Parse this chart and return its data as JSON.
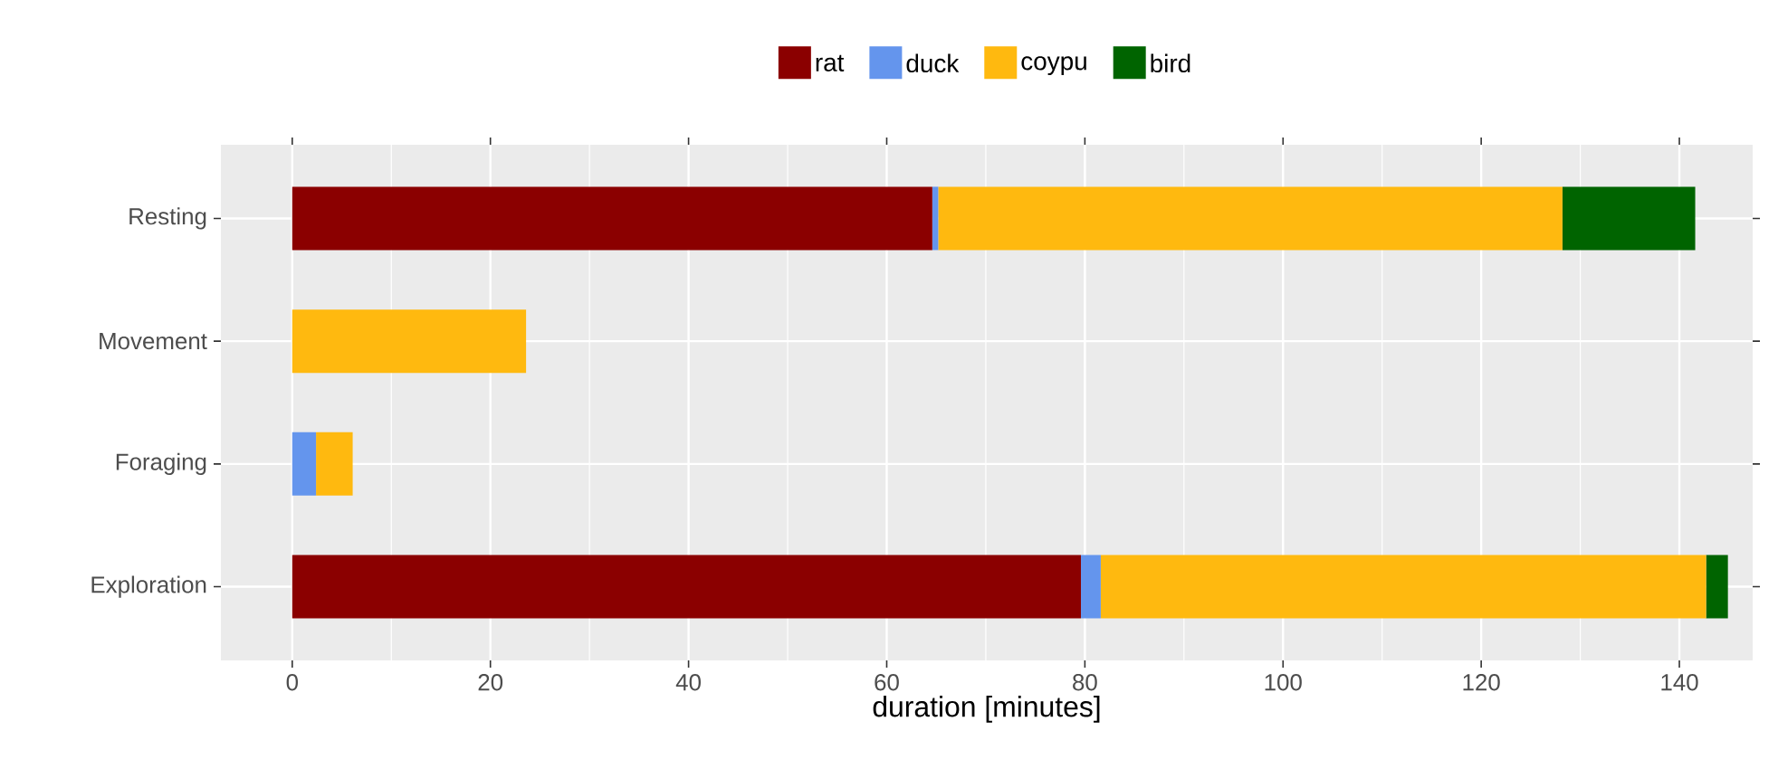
{
  "chart_data": {
    "type": "bar",
    "orientation": "horizontal",
    "stacked": true,
    "xlabel": "duration [minutes]",
    "categories": [
      "Resting",
      "Movement",
      "Foraging",
      "Exploration"
    ],
    "series": [
      {
        "name": "rat",
        "color": "#8b0000",
        "values": [
          64.6,
          0,
          0,
          79.6
        ]
      },
      {
        "name": "duck",
        "color": "#6495ed",
        "values": [
          0.6,
          0,
          2.4,
          2.0
        ]
      },
      {
        "name": "coypu",
        "color": "#ffb90f",
        "values": [
          63.0,
          23.6,
          3.7,
          61.1
        ]
      },
      {
        "name": "bird",
        "color": "#006400",
        "values": [
          13.4,
          0,
          0,
          2.2
        ]
      }
    ],
    "xlim": [
      -7.2,
      147.4
    ],
    "xticks": [
      0,
      20,
      40,
      60,
      80,
      100,
      120,
      140
    ],
    "grid": true,
    "legend": "top"
  }
}
